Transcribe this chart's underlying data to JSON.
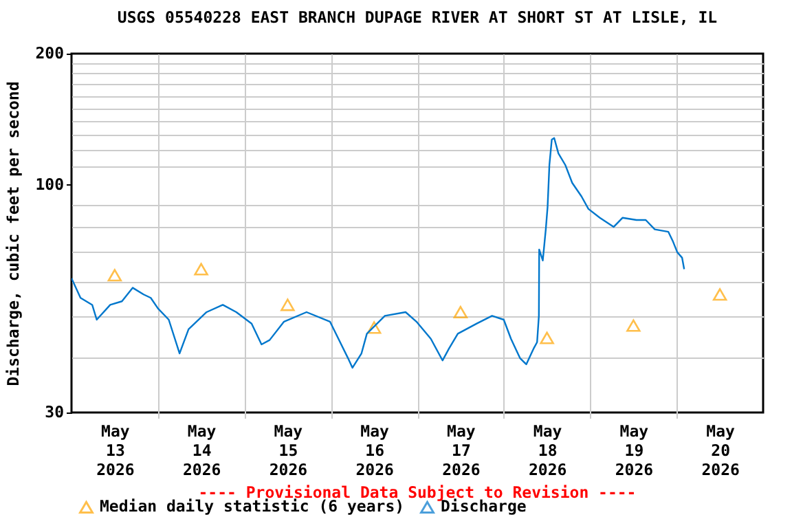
{
  "chart_data": {
    "type": "line",
    "title": "USGS 05540228 EAST BRANCH DUPAGE RIVER AT SHORT ST AT LISLE, IL",
    "ylabel": "Discharge, cubic feet per second",
    "annotations": [
      "---- Provisional Data Subject to Revision ----"
    ],
    "log": "y",
    "grid": true,
    "legend": "bottom",
    "xlim": [
      "2026-05-13T00:00",
      "2026-05-21T00:00"
    ],
    "xticks": [
      {
        "value": "2026-05-13T12:00",
        "label": "May 13 2026"
      },
      {
        "value": "2026-05-14T12:00",
        "label": "May 14 2026"
      },
      {
        "value": "2026-05-15T12:00",
        "label": "May 15 2026"
      },
      {
        "value": "2026-05-16T12:00",
        "label": "May 16 2026"
      },
      {
        "value": "2026-05-17T12:00",
        "label": "May 17 2026"
      },
      {
        "value": "2026-05-18T12:00",
        "label": "May 18 2026"
      },
      {
        "value": "2026-05-19T12:00",
        "label": "May 19 2026"
      },
      {
        "value": "2026-05-20T12:00",
        "label": "May 20 2026"
      },
      {
        "value": "2026-05-14T00:00",
        "label": null
      },
      {
        "value": "2026-05-15T00:00",
        "label": null
      },
      {
        "value": "2026-05-16T00:00",
        "label": null
      },
      {
        "value": "2026-05-17T00:00",
        "label": null
      },
      {
        "value": "2026-05-18T00:00",
        "label": null
      },
      {
        "value": "2026-05-19T00:00",
        "label": null
      },
      {
        "value": "2026-05-20T00:00",
        "label": null
      }
    ],
    "ylim": [
      30,
      200
    ],
    "yticks": [
      30,
      {
        "value": 40,
        "label": null
      },
      {
        "value": 50,
        "label": null
      },
      {
        "value": 60,
        "label": null
      },
      {
        "value": 70,
        "label": null
      },
      {
        "value": 80,
        "label": null
      },
      {
        "value": 90,
        "label": null
      },
      100,
      {
        "value": 110,
        "label": null
      },
      {
        "value": 120,
        "label": null
      },
      {
        "value": 130,
        "label": null
      },
      {
        "value": 140,
        "label": null
      },
      {
        "value": 150,
        "label": null
      },
      {
        "value": 160,
        "label": null
      },
      {
        "value": 170,
        "label": null
      },
      {
        "value": 180,
        "label": null
      },
      {
        "value": 190,
        "label": null
      },
      200
    ],
    "series": [
      {
        "name": "Median daily statistic (6 years)",
        "type": "scatter",
        "marker": "triangle",
        "color": "#ffa500",
        "x": [
          "2026-05-13T12:00",
          "2026-05-14T12:00",
          "2026-05-15T12:00",
          "2026-05-16T12:00",
          "2026-05-17T12:00",
          "2026-05-18T12:00",
          "2026-05-19T12:00",
          "2026-05-20T12:00"
        ],
        "values": [
          62,
          64,
          53,
          47,
          51,
          44.5,
          47.5,
          56
        ]
      },
      {
        "name": "Discharge",
        "color": "#0077cc",
        "x": [
          "2026-05-13T00:00",
          "2026-05-13T02:30",
          "2026-05-13T05:45",
          "2026-05-13T07:00",
          "2026-05-13T10:45",
          "2026-05-13T14:00",
          "2026-05-13T17:00",
          "2026-05-13T20:00",
          "2026-05-13T22:00",
          "2026-05-14T00:00",
          "2026-05-14T03:00",
          "2026-05-14T06:00",
          "2026-05-14T08:30",
          "2026-05-14T13:30",
          "2026-05-14T18:00",
          "2026-05-14T21:45",
          "2026-05-15T02:00",
          "2026-05-15T04:45",
          "2026-05-15T07:00",
          "2026-05-15T11:00",
          "2026-05-15T17:15",
          "2026-05-15T23:45",
          "2026-05-16T04:45",
          "2026-05-16T06:00",
          "2026-05-16T08:30",
          "2026-05-16T10:00",
          "2026-05-16T15:00",
          "2026-05-16T20:45",
          "2026-05-16T23:45",
          "2026-05-17T03:45",
          "2026-05-17T07:00",
          "2026-05-17T08:45",
          "2026-05-17T11:15",
          "2026-05-17T16:30",
          "2026-05-17T20:45",
          "2026-05-18T00:00",
          "2026-05-18T02:00",
          "2026-05-18T04:30",
          "2026-05-18T06:15",
          "2026-05-18T08:15",
          "2026-05-18T09:15",
          "2026-05-18T09:45",
          "2026-05-18T09:50",
          "2026-05-18T10:50",
          "2026-05-18T11:40",
          "2026-05-18T12:10",
          "2026-05-18T12:40",
          "2026-05-18T13:20",
          "2026-05-18T14:00",
          "2026-05-18T15:10",
          "2026-05-18T17:05",
          "2026-05-18T19:00",
          "2026-05-18T21:35",
          "2026-05-18T23:30",
          "2026-05-19T02:40",
          "2026-05-19T06:30",
          "2026-05-19T09:00",
          "2026-05-19T12:50",
          "2026-05-19T15:25",
          "2026-05-19T17:55",
          "2026-05-19T21:40",
          "2026-05-19T23:00",
          "2026-05-20T00:10",
          "2026-05-20T01:30",
          "2026-05-20T02:05"
        ],
        "values": [
          61,
          55,
          53,
          49,
          53,
          54,
          58,
          56,
          55,
          52,
          49,
          41,
          46.6,
          51,
          53,
          51,
          48,
          43,
          44,
          48.5,
          51,
          48.5,
          40,
          38,
          41,
          45.5,
          50,
          51,
          48.5,
          44.3,
          39.5,
          42,
          45.5,
          48,
          50,
          49,
          44.3,
          40,
          38.7,
          42,
          43.5,
          50,
          71,
          67,
          79,
          89,
          111,
          127,
          128,
          118,
          111,
          101,
          94,
          88,
          84,
          80,
          84,
          83,
          83,
          79,
          78,
          74,
          70,
          68,
          64
        ]
      }
    ]
  }
}
